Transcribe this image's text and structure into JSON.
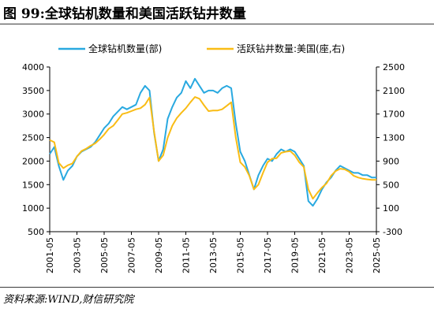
{
  "header": {
    "title": "图 99:全球钻机数量和美国活跃钻井数量"
  },
  "footer": {
    "source": "资料来源:WIND,财信研究院"
  },
  "colors": {
    "series_global": "#29A9E0",
    "series_us": "#F9BC15",
    "axis": "#000000"
  },
  "chart_data": {
    "type": "line",
    "title": "",
    "legend_position": "top",
    "grid": false,
    "x_tick_labels": [
      "2001-05",
      "2003-05",
      "2005-05",
      "2007-05",
      "2009-05",
      "2011-05",
      "2013-05",
      "2015-05",
      "2017-05",
      "2019-05",
      "2021-05",
      "2023-05",
      "2025-05"
    ],
    "x_range": [
      "2001-05",
      "2025-05"
    ],
    "y_left": {
      "ylim": [
        500,
        4000
      ],
      "ticks": [
        500,
        1000,
        1500,
        2000,
        2500,
        3000,
        3500,
        4000
      ]
    },
    "y_right": {
      "ylim": [
        -300,
        2500
      ],
      "ticks": [
        -300,
        100,
        500,
        900,
        1300,
        1700,
        2100,
        2500
      ]
    },
    "series": [
      {
        "name": "全球钻机数量(部)",
        "axis": "left",
        "color": "#29A9E0",
        "x": [
          "2001-05",
          "2001-09",
          "2002-01",
          "2002-05",
          "2002-09",
          "2003-01",
          "2003-05",
          "2003-09",
          "2004-01",
          "2004-05",
          "2004-09",
          "2005-01",
          "2005-05",
          "2005-09",
          "2006-01",
          "2006-05",
          "2006-09",
          "2007-01",
          "2007-05",
          "2007-09",
          "2008-01",
          "2008-05",
          "2008-09",
          "2009-01",
          "2009-05",
          "2009-09",
          "2010-01",
          "2010-05",
          "2010-09",
          "2011-01",
          "2011-05",
          "2011-09",
          "2012-01",
          "2012-05",
          "2012-09",
          "2013-01",
          "2013-05",
          "2013-09",
          "2014-01",
          "2014-05",
          "2014-09",
          "2015-01",
          "2015-05",
          "2015-09",
          "2016-01",
          "2016-05",
          "2016-09",
          "2017-01",
          "2017-05",
          "2017-09",
          "2018-01",
          "2018-05",
          "2018-09",
          "2019-01",
          "2019-05",
          "2019-09",
          "2020-01",
          "2020-05",
          "2020-09",
          "2021-01",
          "2021-05",
          "2021-09",
          "2022-01",
          "2022-05",
          "2022-09",
          "2023-01",
          "2023-05",
          "2023-09",
          "2024-01",
          "2024-05",
          "2024-09",
          "2025-01",
          "2025-05"
        ],
        "values": [
          2150,
          2300,
          1900,
          1600,
          1800,
          1900,
          2100,
          2200,
          2250,
          2300,
          2400,
          2550,
          2700,
          2800,
          2950,
          3050,
          3150,
          3100,
          3150,
          3200,
          3450,
          3600,
          3500,
          2600,
          2000,
          2250,
          2900,
          3150,
          3350,
          3450,
          3700,
          3550,
          3750,
          3600,
          3450,
          3500,
          3500,
          3450,
          3550,
          3600,
          3550,
          2800,
          2200,
          2000,
          1700,
          1400,
          1700,
          1900,
          2050,
          2000,
          2150,
          2250,
          2200,
          2250,
          2200,
          2050,
          1900,
          1150,
          1050,
          1200,
          1400,
          1550,
          1650,
          1800,
          1900,
          1850,
          1800,
          1750,
          1750,
          1700,
          1700,
          1650,
          1650
        ]
      },
      {
        "name": "活跃钻井数量:美国(座,右)",
        "axis": "right",
        "color": "#F9BC15",
        "x": [
          "2001-05",
          "2001-09",
          "2002-01",
          "2002-05",
          "2002-09",
          "2003-01",
          "2003-05",
          "2003-09",
          "2004-01",
          "2004-05",
          "2004-09",
          "2005-01",
          "2005-05",
          "2005-09",
          "2006-01",
          "2006-05",
          "2006-09",
          "2007-01",
          "2007-05",
          "2007-09",
          "2008-01",
          "2008-05",
          "2008-09",
          "2009-01",
          "2009-05",
          "2009-09",
          "2010-01",
          "2010-05",
          "2010-09",
          "2011-01",
          "2011-05",
          "2011-09",
          "2012-01",
          "2012-05",
          "2012-09",
          "2013-01",
          "2013-05",
          "2013-09",
          "2014-01",
          "2014-05",
          "2014-09",
          "2015-01",
          "2015-05",
          "2015-09",
          "2016-01",
          "2016-05",
          "2016-09",
          "2017-01",
          "2017-05",
          "2017-09",
          "2018-01",
          "2018-05",
          "2018-09",
          "2019-01",
          "2019-05",
          "2019-09",
          "2020-01",
          "2020-05",
          "2020-09",
          "2021-01",
          "2021-05",
          "2021-09",
          "2022-01",
          "2022-05",
          "2022-09",
          "2023-01",
          "2023-05",
          "2023-09",
          "2024-01",
          "2024-05",
          "2024-09",
          "2025-01",
          "2025-05"
        ],
        "values": [
          1260,
          1220,
          870,
          780,
          830,
          860,
          980,
          1070,
          1110,
          1160,
          1200,
          1270,
          1350,
          1450,
          1500,
          1600,
          1700,
          1720,
          1750,
          1780,
          1800,
          1860,
          1980,
          1400,
          900,
          1000,
          1300,
          1500,
          1630,
          1720,
          1800,
          1900,
          1990,
          1960,
          1850,
          1750,
          1760,
          1760,
          1780,
          1840,
          1900,
          1300,
          880,
          800,
          650,
          420,
          500,
          700,
          880,
          940,
          950,
          1040,
          1060,
          1070,
          1000,
          880,
          800,
          420,
          260,
          360,
          450,
          520,
          650,
          730,
          770,
          760,
          720,
          650,
          620,
          600,
          590,
          580,
          580
        ]
      }
    ]
  }
}
